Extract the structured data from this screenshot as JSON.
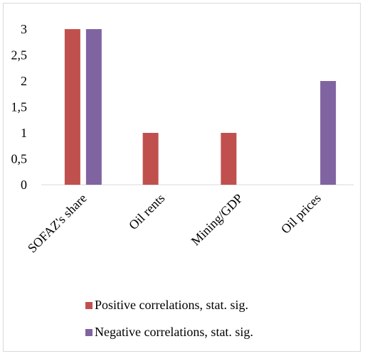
{
  "chart_data": {
    "type": "bar",
    "categories": [
      "SOFAZ's share",
      "Oil rents",
      "Mining/GDP",
      "Oil prices"
    ],
    "series": [
      {
        "name": "Positive correlations, stat. sig.",
        "values": [
          3,
          1,
          1,
          0
        ],
        "color": "#c0504d"
      },
      {
        "name": "Negative correlations, stat. sig.",
        "values": [
          3,
          0,
          0,
          2
        ],
        "color": "#8064a2"
      }
    ],
    "yticks": [
      "0",
      "0,5",
      "1",
      "1,5",
      "2",
      "2,5",
      "3"
    ],
    "ylim": [
      0,
      3
    ],
    "title": "",
    "xlabel": "",
    "ylabel": "",
    "grid": false,
    "legend_position": "bottom"
  }
}
